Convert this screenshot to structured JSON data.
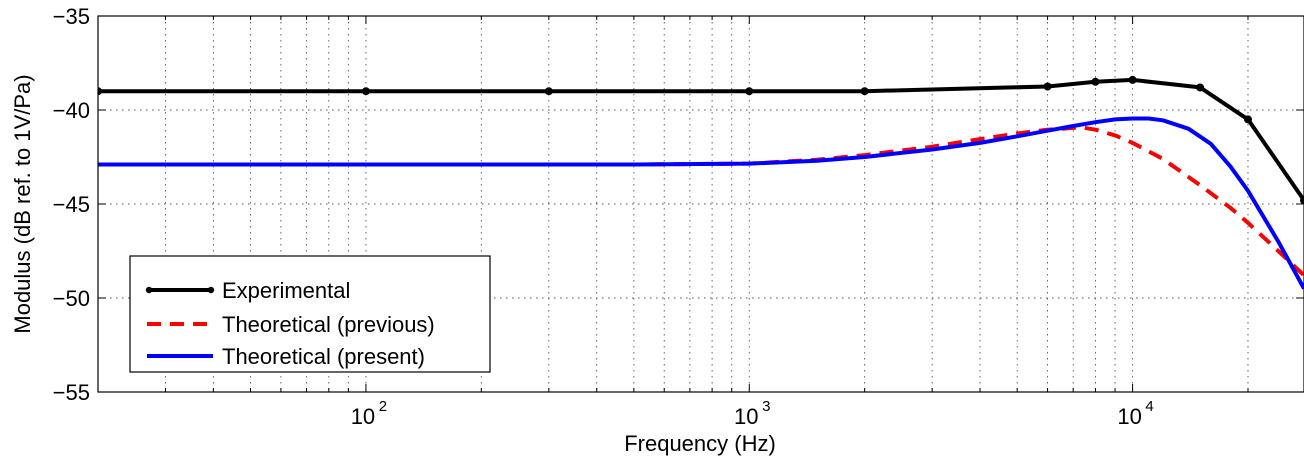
{
  "chart_data": {
    "type": "line",
    "title": "",
    "xlabel": "Frequency (Hz)",
    "ylabel": "Modulus (dB ref. to 1V/Pa)",
    "x_scale": "log",
    "xlim": [
      20,
      28000
    ],
    "ylim": [
      -55,
      -35
    ],
    "grid": true,
    "legend_position": "bottom-left",
    "y_ticks": [
      -35,
      -40,
      -45,
      -50,
      -55
    ],
    "y_tick_labels": [
      "−35",
      "−40",
      "−45",
      "−50",
      "−55"
    ],
    "x_ticks": [
      100,
      1000,
      10000
    ],
    "x_tick_labels": [
      {
        "base": "10",
        "exp": "2"
      },
      {
        "base": "10",
        "exp": "3"
      },
      {
        "base": "10",
        "exp": "4"
      }
    ],
    "series": [
      {
        "name": "Experimental",
        "color": "#000000",
        "style": "solid",
        "markers": true,
        "x": [
          20,
          100,
          300,
          1000,
          2000,
          6000,
          8000,
          10000,
          15000,
          20000,
          28000
        ],
        "y": [
          -39.0,
          -39.0,
          -39.0,
          -39.0,
          -39.0,
          -38.75,
          -38.5,
          -38.4,
          -38.8,
          -40.5,
          -44.8
        ]
      },
      {
        "name": "Theoretical (previous)",
        "color": "#ff0000",
        "style": "dashed",
        "markers": false,
        "x": [
          20,
          100,
          500,
          1000,
          1500,
          2000,
          3000,
          4000,
          5000,
          6000,
          7000,
          7500,
          8000,
          9000,
          10000,
          12000,
          15000,
          18000,
          20000,
          24000,
          28000
        ],
        "y": [
          -42.9,
          -42.9,
          -42.9,
          -42.85,
          -42.65,
          -42.4,
          -41.95,
          -41.55,
          -41.25,
          -41.05,
          -40.95,
          -40.95,
          -41.05,
          -41.35,
          -41.75,
          -42.6,
          -44.0,
          -45.2,
          -46.0,
          -47.5,
          -48.8
        ]
      },
      {
        "name": "Theoretical (present)",
        "color": "#0000ff",
        "style": "solid",
        "markers": false,
        "x": [
          20,
          100,
          500,
          1000,
          1500,
          2000,
          3000,
          4000,
          5000,
          6000,
          7000,
          8000,
          9000,
          10000,
          11000,
          12000,
          14000,
          16000,
          18000,
          20000,
          24000,
          28000
        ],
        "y": [
          -42.9,
          -42.9,
          -42.9,
          -42.85,
          -42.7,
          -42.5,
          -42.1,
          -41.75,
          -41.4,
          -41.1,
          -40.85,
          -40.65,
          -40.5,
          -40.45,
          -40.45,
          -40.55,
          -41.0,
          -41.8,
          -43.0,
          -44.3,
          -47.0,
          -49.5
        ]
      }
    ]
  }
}
